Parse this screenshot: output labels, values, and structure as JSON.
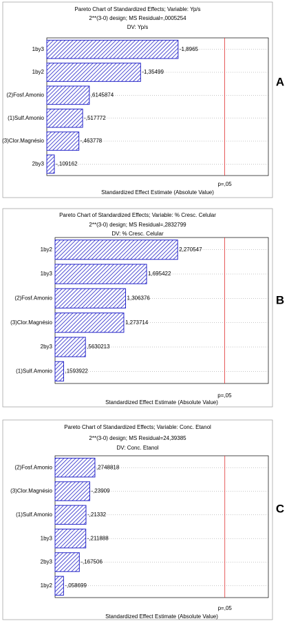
{
  "chart_data": [
    {
      "type": "pareto",
      "title": "Pareto Chart of Standardized Effects; Variable: Yp/s",
      "subtitle": "2**(3-0) design; MS Residual=,0005254",
      "dv_label": "DV: Yp/s",
      "categories": [
        "1by3",
        "1by2",
        "(2)Fosf.Amonio",
        "(1)Sulf.Amonio",
        "(3)Clor.Magnésio",
        "2by3"
      ],
      "values": [
        -1.8965,
        -1.35499,
        0.6145874,
        -0.517772,
        -0.463778,
        -0.109162
      ],
      "value_labels": [
        "-1,8965",
        "-1,35499",
        ",6145874",
        "-,517772",
        "-,463778",
        "-,109162"
      ],
      "xlim": [
        0,
        3.2
      ],
      "ref_line": {
        "value": 2.57,
        "label": "p=,05"
      },
      "color": "#2323c8",
      "grid": true,
      "xlabel": "Standardized Effect Estimate (Absolute Value)",
      "panel_label": "A"
    },
    {
      "type": "pareto",
      "title": "Pareto Chart of Standardized Effects; Variable: % Cresc. Celular",
      "subtitle": "2**(3-0) design; MS Residual=,2832799",
      "dv_label": "DV: % Cresc. Celular",
      "categories": [
        "1by2",
        "1by3",
        "(2)Fosf.Amonio",
        "(3)Clor.Magnésio",
        "2by3",
        "(1)Sulf.Amonio"
      ],
      "values": [
        2.270547,
        1.695422,
        1.306376,
        1.273714,
        0.5630213,
        0.1593922
      ],
      "value_labels": [
        "2,270547",
        "1,695422",
        "1,306376",
        "1,273714",
        ",5630213",
        ",1593922"
      ],
      "xlim": [
        0,
        3.95
      ],
      "ref_line": {
        "value": 3.14,
        "label": "p=,05"
      },
      "color": "#2323c8",
      "grid": true,
      "xlabel": "Standardized Effect Estimate (Absolute Value)",
      "panel_label": "B"
    },
    {
      "type": "pareto",
      "title": "Pareto Chart of Standardized Effects; Variable: Conc. Etanol",
      "subtitle": "2**(3-0) design; MS Residual=24,39385",
      "dv_label": "DV: Conc. Etanol",
      "categories": [
        "(2)Fosf.Amonio",
        "(3)Clor.Magnésio",
        "(1)Sulf.Amonio",
        "1by3",
        "2by3",
        "1by2"
      ],
      "values": [
        0.2748818,
        -0.23909,
        -0.21332,
        -0.211888,
        -0.167506,
        -0.058699
      ],
      "value_labels": [
        ",2748818",
        "-,23909",
        "-,21332",
        "-,211888",
        "-,167506",
        "-,058699"
      ],
      "xlim": [
        0,
        1.47
      ],
      "ref_line": {
        "value": 1.17,
        "label": "p=,05"
      },
      "color": "#2323c8",
      "grid": true,
      "xlabel": "Standardized Effect Estimate (Absolute Value)",
      "panel_label": "C"
    }
  ]
}
